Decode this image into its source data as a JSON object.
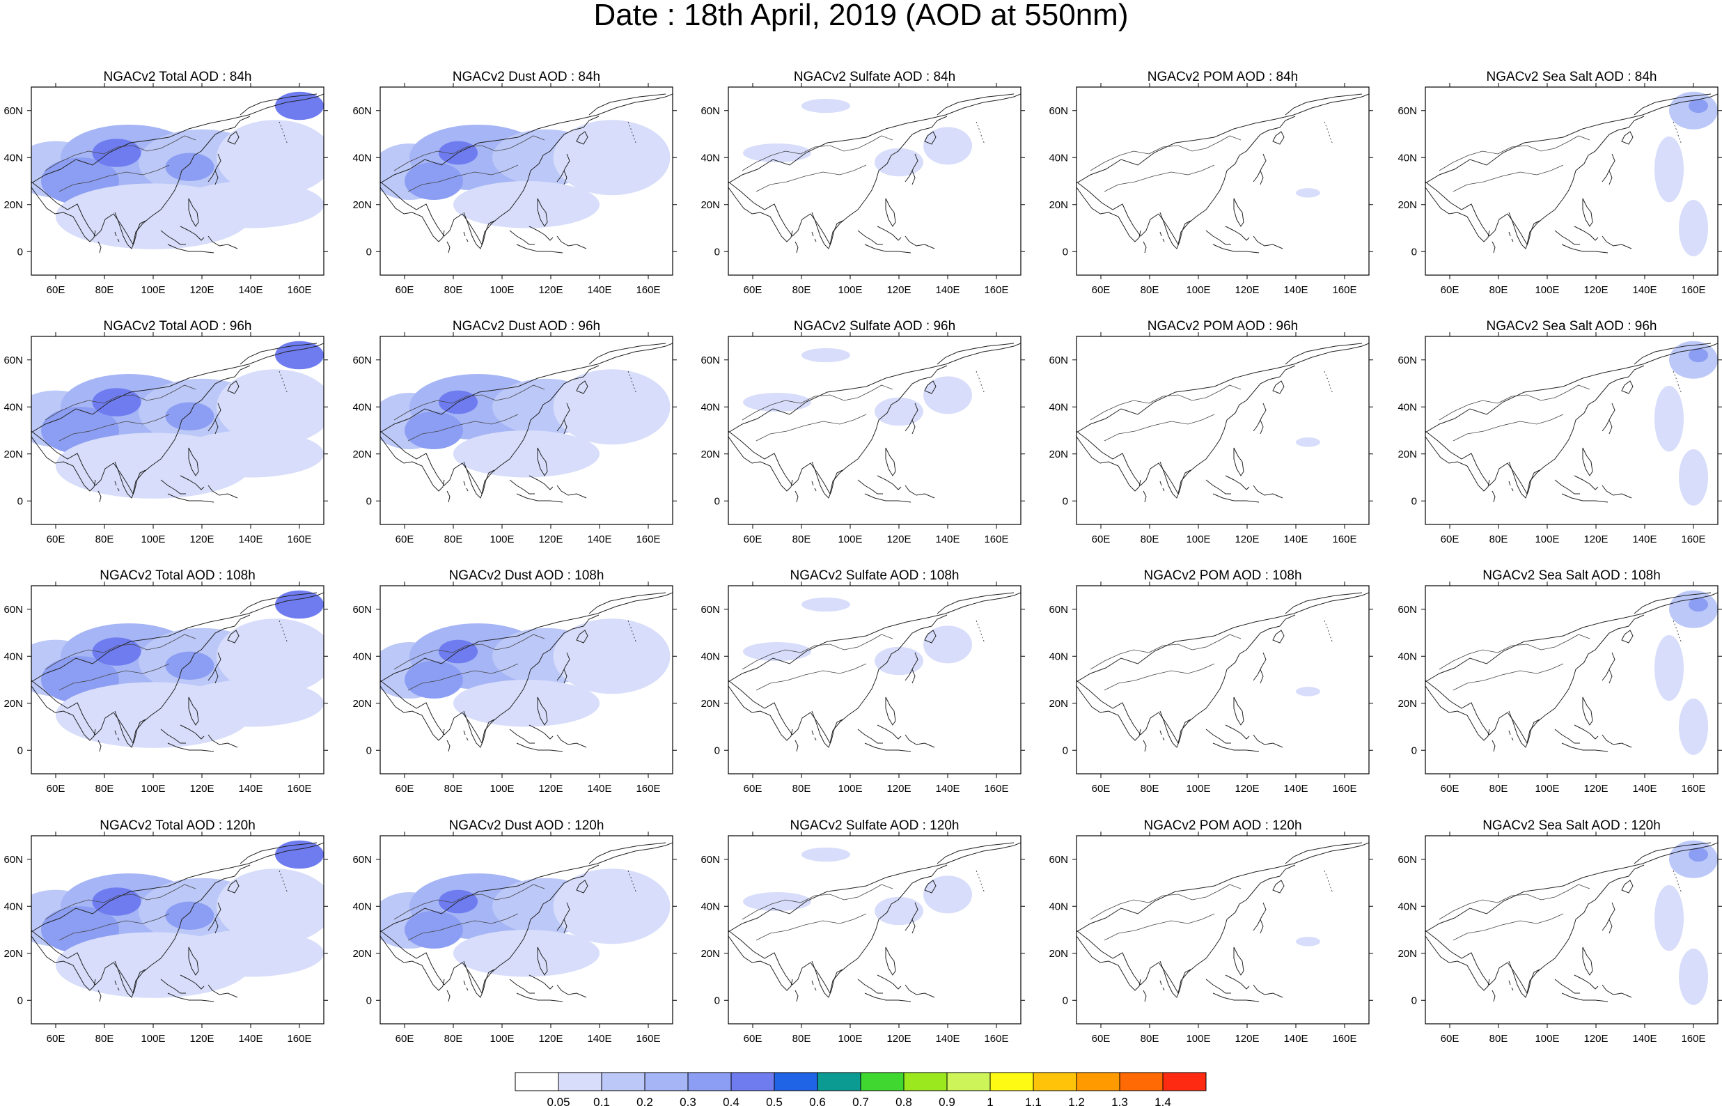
{
  "figure": {
    "title": "Date : 18th April, 2019 (AOD at 550nm)"
  },
  "axes": {
    "x_ticks": [
      "60E",
      "80E",
      "100E",
      "120E",
      "140E",
      "160E"
    ],
    "x_values": [
      60,
      80,
      100,
      120,
      140,
      160
    ],
    "y_ticks": [
      "60N",
      "40N",
      "20N",
      "0"
    ],
    "y_values": [
      60,
      40,
      20,
      0
    ],
    "lon_range": [
      50,
      170
    ],
    "lat_range": [
      -10,
      70
    ]
  },
  "panels": [
    {
      "title": "NGACv2 Total AOD : 84h"
    },
    {
      "title": "NGACv2 Dust AOD : 84h"
    },
    {
      "title": "NGACv2 Sulfate AOD : 84h"
    },
    {
      "title": "NGACv2 POM AOD : 84h"
    },
    {
      "title": "NGACv2 Sea Salt AOD : 84h"
    },
    {
      "title": "NGACv2 Total AOD : 96h"
    },
    {
      "title": "NGACv2 Dust AOD : 96h"
    },
    {
      "title": "NGACv2 Sulfate AOD : 96h"
    },
    {
      "title": "NGACv2 POM AOD : 96h"
    },
    {
      "title": "NGACv2 Sea Salt AOD : 96h"
    },
    {
      "title": "NGACv2 Total AOD : 108h"
    },
    {
      "title": "NGACv2 Dust AOD : 108h"
    },
    {
      "title": "NGACv2 Sulfate AOD : 108h"
    },
    {
      "title": "NGACv2 POM AOD : 108h"
    },
    {
      "title": "NGACv2 Sea Salt AOD : 108h"
    },
    {
      "title": "NGACv2 Total AOD : 120h"
    },
    {
      "title": "NGACv2 Dust AOD : 120h"
    },
    {
      "title": "NGACv2 Sulfate AOD : 120h"
    },
    {
      "title": "NGACv2 POM AOD : 120h"
    },
    {
      "title": "NGACv2 Sea Salt  AOD : 120h"
    }
  ],
  "colorbar": {
    "labels": [
      "0.05",
      "0.1",
      "0.2",
      "0.3",
      "0.4",
      "0.5",
      "0.6",
      "0.7",
      "0.8",
      "0.9",
      "1",
      "1.1",
      "1.2",
      "1.3",
      "1.4"
    ],
    "colors": [
      "#ffffff",
      "#d7ddfa",
      "#bcc8f8",
      "#a6b5f5",
      "#8c9ef3",
      "#6e7cf0",
      "#1f63e6",
      "#0b9b93",
      "#40d830",
      "#9be81e",
      "#cdf55a",
      "#fffa14",
      "#ffc40a",
      "#ff9a00",
      "#ff6a05",
      "#ff2a12"
    ]
  },
  "field_colors": {
    "level1": "#d7ddfa",
    "level2": "#bcc8f8",
    "level3": "#a6b5f5",
    "level4": "#8c9ef3",
    "level5": "#6e7cf0",
    "level6": "#1f63e6",
    "level7": "#0b9b93",
    "level8": "#40d830"
  }
}
